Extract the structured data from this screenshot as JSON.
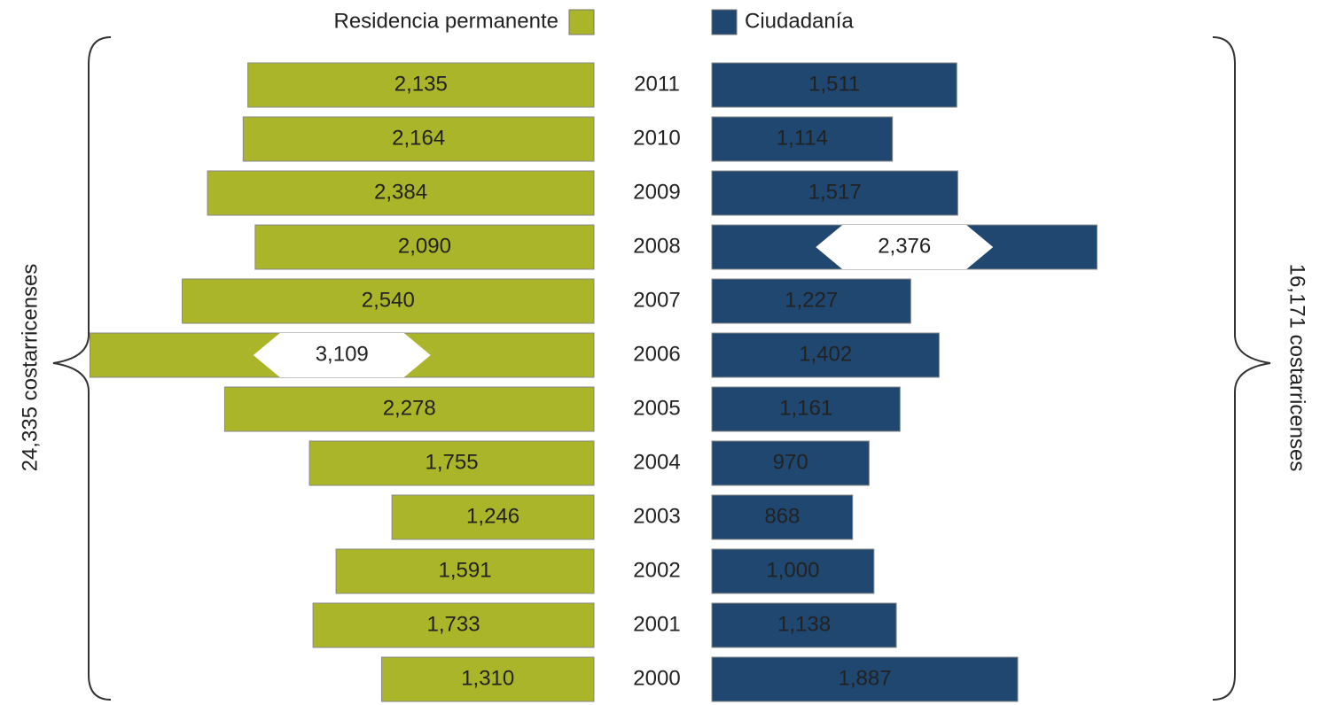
{
  "chart_data": {
    "type": "butterfly-bar",
    "categories": [
      "2011",
      "2010",
      "2009",
      "2008",
      "2007",
      "2006",
      "2005",
      "2004",
      "2003",
      "2002",
      "2001",
      "2000"
    ],
    "series": [
      {
        "name": "Residencia permanente",
        "color": "#aab52a",
        "values": [
          2135,
          2164,
          2384,
          2090,
          2540,
          3109,
          2278,
          1755,
          1246,
          1591,
          1733,
          1310
        ],
        "value_labels": [
          "2,135",
          "2,164",
          "2,384",
          "2,090",
          "2,540",
          "3,109",
          "2,278",
          "1,755",
          "1,246",
          "1,591",
          "1,733",
          "1,310"
        ]
      },
      {
        "name": "Ciudadanía",
        "color": "#1f4770",
        "values": [
          1511,
          1114,
          1517,
          2376,
          1227,
          1402,
          1161,
          970,
          868,
          1000,
          1138,
          1887
        ],
        "value_labels": [
          "1,511",
          "1,114",
          "1,517",
          "2,376",
          "1,227",
          "1,402",
          "1,161",
          "970",
          "868",
          "1,000",
          "1,138",
          "1,887"
        ]
      }
    ],
    "xlim": [
      0,
      3500
    ],
    "annotations": [
      "24,335 costarricenses",
      "16,171 costarricenses"
    ]
  }
}
